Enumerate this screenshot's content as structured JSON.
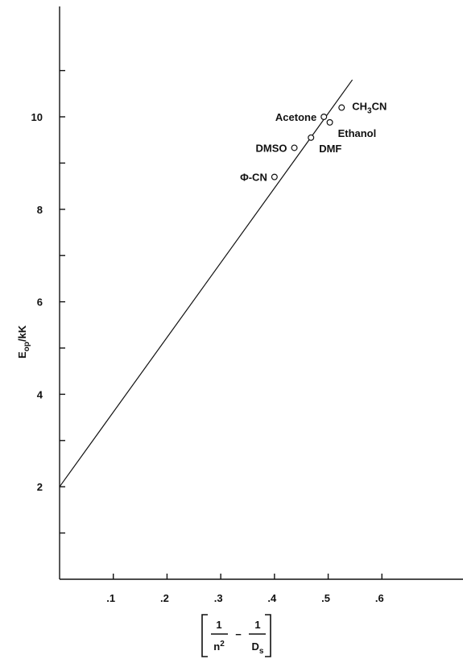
{
  "chart_data": {
    "type": "scatter",
    "xlabel": {
      "numerator_left": "1",
      "denominator_left": "n",
      "denominator_left_sup": "2",
      "operator": "−",
      "numerator_right": "1",
      "denominator_right": "D",
      "denominator_right_sub": "s"
    },
    "ylabel": {
      "main": "E",
      "sub": "op",
      "suffix": "/kK"
    },
    "xlim": [
      0,
      0.7
    ],
    "ylim": [
      0,
      12
    ],
    "xticks": [
      {
        "value": 0.1,
        "label": ".1"
      },
      {
        "value": 0.2,
        "label": ".2"
      },
      {
        "value": 0.3,
        "label": ".3"
      },
      {
        "value": 0.4,
        "label": ".4"
      },
      {
        "value": 0.5,
        "label": ".5"
      },
      {
        "value": 0.6,
        "label": ".6"
      }
    ],
    "yticks": [
      {
        "value": 1,
        "label": ""
      },
      {
        "value": 2,
        "label": "2"
      },
      {
        "value": 3,
        "label": ""
      },
      {
        "value": 4,
        "label": "4"
      },
      {
        "value": 5,
        "label": ""
      },
      {
        "value": 6,
        "label": "6"
      },
      {
        "value": 7,
        "label": ""
      },
      {
        "value": 8,
        "label": "8"
      },
      {
        "value": 9,
        "label": ""
      },
      {
        "value": 10,
        "label": "10"
      },
      {
        "value": 11,
        "label": ""
      }
    ],
    "series": [
      {
        "points": [
          {
            "label": "Φ-CN",
            "x": 0.4,
            "y": 8.7,
            "label_anchor": "left"
          },
          {
            "label": "DMSO",
            "x": 0.437,
            "y": 9.33,
            "label_anchor": "left"
          },
          {
            "label": "DMF",
            "x": 0.468,
            "y": 9.55,
            "label_anchor": "right-below"
          },
          {
            "label": "Acetone",
            "x": 0.492,
            "y": 10.0,
            "label_anchor": "left"
          },
          {
            "label": "Ethanol",
            "x": 0.503,
            "y": 9.88,
            "label_anchor": "right-below"
          },
          {
            "label": "CH",
            "label_sub": "3",
            "label_suffix": "CN",
            "x": 0.525,
            "y": 10.2,
            "label_anchor": "right"
          }
        ]
      }
    ],
    "fit_line": {
      "x": [
        0,
        0.545
      ],
      "y": [
        2.0,
        10.8
      ]
    },
    "grid": false,
    "legend": "none"
  }
}
